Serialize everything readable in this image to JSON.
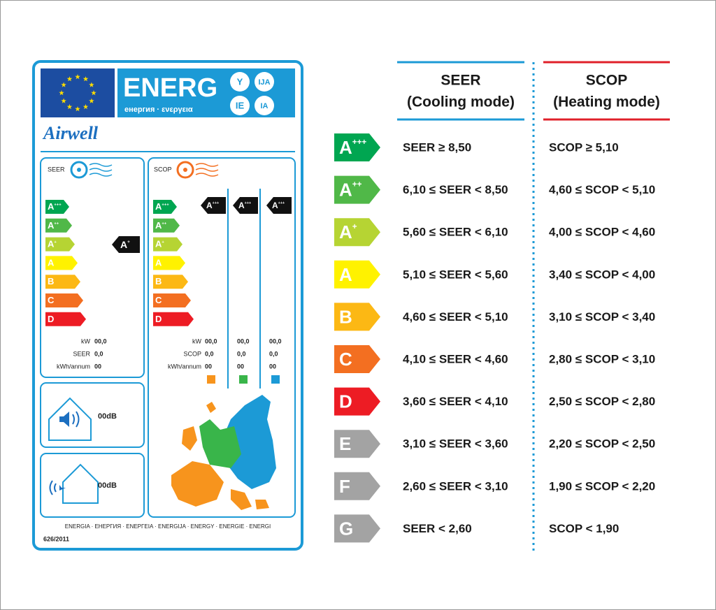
{
  "label": {
    "energy_title": "ENERG",
    "energy_subtitle": "енергия · ενεργεια",
    "suffixes": [
      "Y",
      "IJA",
      "IE",
      "IA"
    ],
    "brand": "Airwell",
    "classes": [
      {
        "letter": "A",
        "sup": "+++",
        "color": "#00a651"
      },
      {
        "letter": "A",
        "sup": "++",
        "color": "#50b848"
      },
      {
        "letter": "A",
        "sup": "+",
        "color": "#b6d433"
      },
      {
        "letter": "A",
        "color": "#fff200"
      },
      {
        "letter": "B",
        "color": "#fcb814"
      },
      {
        "letter": "C",
        "color": "#f36f21"
      },
      {
        "letter": "D",
        "color": "#ed1c24"
      }
    ],
    "seer_panel": {
      "title": "SEER",
      "rating": {
        "letter": "A",
        "sup": "+"
      },
      "rows": [
        {
          "label": "kW",
          "value": "00,0"
        },
        {
          "label": "SEER",
          "value": "0,0"
        },
        {
          "label": "kWh/annum",
          "value": "00"
        }
      ]
    },
    "scop_panel": {
      "title": "SCOP",
      "ratings": [
        {
          "letter": "A",
          "sup": "+++"
        },
        {
          "letter": "A",
          "sup": "+++"
        },
        {
          "letter": "A",
          "sup": "+++"
        }
      ],
      "zone_colors": [
        "#f7941d",
        "#39b54a",
        "#1c9ad6"
      ],
      "rows": [
        {
          "label": "kW",
          "values": [
            "00,0",
            "00,0",
            "00,0"
          ]
        },
        {
          "label": "SCOP",
          "values": [
            "0,0",
            "0,0",
            "0,0"
          ]
        },
        {
          "label": "kWh/annum",
          "values": [
            "00",
            "00",
            "00"
          ]
        }
      ]
    },
    "noise_indoor": "00dB",
    "noise_outdoor": "00dB",
    "footer": "ENERGIA · ЕНЕРГИЯ · ΕΝΕΡΓΕΙΑ · ENERGIJA · ENERGY · ENERGIE · ENERGI",
    "regulation": "626/2011"
  },
  "table": {
    "headers": [
      {
        "title": "SEER",
        "subtitle": "(Cooling mode)",
        "color": "#1c9ad6"
      },
      {
        "title": "SCOP",
        "subtitle": "(Heating mode)",
        "color": "#e0202a"
      }
    ],
    "rows": [
      {
        "class": {
          "letter": "A",
          "sup": "+++",
          "color": "#00a651"
        },
        "seer": "SEER ≥ 8,50",
        "scop": "SCOP ≥ 5,10"
      },
      {
        "class": {
          "letter": "A",
          "sup": "++",
          "color": "#50b848"
        },
        "seer": "6,10 ≤ SEER < 8,50",
        "scop": "4,60 ≤ SCOP < 5,10"
      },
      {
        "class": {
          "letter": "A",
          "sup": "+",
          "color": "#b6d433"
        },
        "seer": "5,60 ≤ SEER < 6,10",
        "scop": "4,00 ≤ SCOP < 4,60"
      },
      {
        "class": {
          "letter": "A",
          "color": "#fff200"
        },
        "seer": "5,10 ≤ SEER < 5,60",
        "scop": "3,40 ≤ SCOP < 4,00"
      },
      {
        "class": {
          "letter": "B",
          "color": "#fcb814"
        },
        "seer": "4,60 ≤ SEER < 5,10",
        "scop": "3,10 ≤ SCOP < 3,40"
      },
      {
        "class": {
          "letter": "C",
          "color": "#f36f21"
        },
        "seer": "4,10 ≤ SEER < 4,60",
        "scop": "2,80 ≤ SCOP < 3,10"
      },
      {
        "class": {
          "letter": "D",
          "color": "#ed1c24"
        },
        "seer": "3,60 ≤ SEER < 4,10",
        "scop": "2,50 ≤ SCOP < 2,80"
      },
      {
        "class": {
          "letter": "E",
          "color": "#a3a3a3"
        },
        "seer": "3,10 ≤ SEER < 3,60",
        "scop": "2,20 ≤ SCOP < 2,50"
      },
      {
        "class": {
          "letter": "F",
          "color": "#a3a3a3"
        },
        "seer": "2,60 ≤ SEER < 3,10",
        "scop": "1,90 ≤ SCOP < 2,20"
      },
      {
        "class": {
          "letter": "G",
          "color": "#a3a3a3"
        },
        "seer": "SEER < 2,60",
        "scop": "SCOP < 1,90"
      }
    ]
  }
}
